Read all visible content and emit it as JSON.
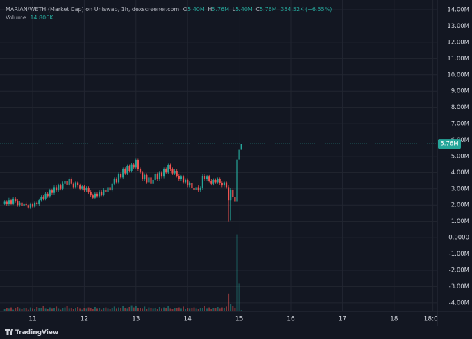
{
  "chart_data": {
    "type": "candlestick",
    "legend": {
      "symbol": "MARIAN/WETH (Market Cap) on Uniswap, 1h, dexscreener.com",
      "fields": [
        {
          "key": "O",
          "value": "5.40M"
        },
        {
          "key": "H",
          "value": "5.76M"
        },
        {
          "key": "L",
          "value": "5.40M"
        },
        {
          "key": "C",
          "value": "5.76M"
        }
      ],
      "change": "354.52K (+6.55%)",
      "volume_label": "Volume",
      "volume_value": "14.806K"
    },
    "brand": "TradingView",
    "last_price_label": "5.76M",
    "up_color": "#26a69a",
    "down_color": "#ef5350",
    "grid": true,
    "xlim": [
      -15.16,
      188.06
    ],
    "xticks": [
      {
        "value": 0,
        "label": "11"
      },
      {
        "value": 24,
        "label": "12"
      },
      {
        "value": 48,
        "label": "13"
      },
      {
        "value": 72,
        "label": "14"
      },
      {
        "value": 96,
        "label": "15"
      },
      {
        "value": 120,
        "label": "16"
      },
      {
        "value": 144,
        "label": "17"
      },
      {
        "value": 168,
        "label": "18"
      },
      {
        "value": 186,
        "label": "18:00"
      }
    ],
    "ylim": [
      -4.52,
      14.6
    ],
    "yticks": [
      {
        "value": 14,
        "label": "14.00M"
      },
      {
        "value": 13,
        "label": "13.00M"
      },
      {
        "value": 12,
        "label": "12.00M"
      },
      {
        "value": 11,
        "label": "11.00M"
      },
      {
        "value": 10,
        "label": "10.00M"
      },
      {
        "value": 9,
        "label": "9.00M"
      },
      {
        "value": 8,
        "label": "8.00M"
      },
      {
        "value": 7,
        "label": "7.00M"
      },
      {
        "value": 6,
        "label": "6.00M"
      },
      {
        "value": 5,
        "label": "5.00M"
      },
      {
        "value": 4,
        "label": "4.00M"
      },
      {
        "value": 3,
        "label": "3.00M"
      },
      {
        "value": 2,
        "label": "2.00M"
      },
      {
        "value": 1,
        "label": "1.00M"
      },
      {
        "value": 0,
        "label": "0.0000"
      },
      {
        "value": -1,
        "label": "-1.00M"
      },
      {
        "value": -2,
        "label": "-2.00M"
      },
      {
        "value": -3,
        "label": "-3.00M"
      },
      {
        "value": -4,
        "label": "-4.00M"
      }
    ],
    "volume_lim": [
      0,
      1000
    ],
    "x": [
      -13,
      -12,
      -11,
      -10,
      -9,
      -8,
      -7,
      -6,
      -5,
      -4,
      -3,
      -2,
      -1,
      0,
      1,
      2,
      3,
      4,
      5,
      6,
      7,
      8,
      9,
      10,
      11,
      12,
      13,
      14,
      15,
      16,
      17,
      18,
      19,
      20,
      21,
      22,
      23,
      24,
      25,
      26,
      27,
      28,
      29,
      30,
      31,
      32,
      33,
      34,
      35,
      36,
      37,
      38,
      39,
      40,
      41,
      42,
      43,
      44,
      45,
      46,
      47,
      48,
      49,
      50,
      51,
      52,
      53,
      54,
      55,
      56,
      57,
      58,
      59,
      60,
      61,
      62,
      63,
      64,
      65,
      66,
      67,
      68,
      69,
      70,
      71,
      72,
      73,
      74,
      75,
      76,
      77,
      78,
      79,
      80,
      81,
      82,
      83,
      84,
      85,
      86,
      87,
      88,
      89,
      90,
      91,
      92,
      93,
      94,
      95,
      96,
      97
    ],
    "open": [
      2.1,
      2.2,
      2.05,
      2.3,
      2.1,
      2.4,
      2.25,
      2.0,
      2.15,
      1.95,
      2.1,
      2.0,
      1.85,
      2.05,
      1.9,
      2.15,
      2.05,
      2.3,
      2.5,
      2.4,
      2.7,
      2.55,
      2.9,
      2.75,
      3.1,
      2.9,
      3.2,
      3.0,
      3.3,
      3.5,
      3.25,
      3.6,
      3.3,
      3.1,
      3.4,
      3.2,
      3.0,
      3.15,
      2.9,
      3.05,
      2.8,
      2.6,
      2.45,
      2.7,
      2.55,
      2.8,
      2.65,
      2.95,
      2.8,
      3.1,
      2.9,
      3.3,
      3.6,
      3.4,
      3.9,
      3.7,
      4.2,
      3.95,
      4.4,
      4.1,
      4.5,
      4.3,
      4.75,
      4.2,
      4.0,
      3.6,
      3.85,
      3.4,
      3.7,
      3.3,
      3.55,
      3.9,
      3.6,
      4.0,
      3.75,
      4.2,
      4.0,
      4.45,
      4.2,
      3.95,
      4.1,
      3.8,
      3.6,
      3.75,
      3.4,
      3.55,
      3.2,
      3.35,
      3.05,
      2.95,
      3.1,
      2.9,
      3.05,
      3.8,
      3.6,
      3.75,
      3.5,
      3.3,
      3.55,
      3.4,
      3.6,
      3.35,
      3.2,
      3.4,
      3.1,
      2.3,
      2.95,
      2.5,
      2.2,
      4.8,
      5.4
    ],
    "high": [
      2.3,
      2.3,
      2.45,
      2.4,
      2.5,
      2.5,
      2.35,
      2.25,
      2.25,
      2.2,
      2.2,
      2.1,
      2.15,
      2.15,
      2.25,
      2.25,
      2.4,
      2.6,
      2.6,
      2.8,
      2.8,
      3.0,
      3.0,
      3.2,
      3.2,
      3.3,
      3.3,
      3.45,
      3.6,
      3.6,
      3.7,
      3.7,
      3.4,
      3.5,
      3.5,
      3.3,
      3.25,
      3.25,
      3.15,
      3.15,
      2.9,
      2.7,
      2.8,
      2.8,
      2.9,
      2.9,
      3.05,
      3.05,
      3.2,
      3.2,
      3.4,
      3.7,
      3.7,
      4.0,
      4.0,
      4.3,
      4.3,
      4.5,
      4.5,
      4.6,
      4.6,
      4.85,
      4.85,
      4.3,
      4.1,
      3.95,
      3.95,
      3.8,
      3.8,
      3.65,
      4.0,
      4.0,
      4.1,
      4.1,
      4.3,
      4.3,
      4.55,
      4.55,
      4.3,
      4.2,
      4.2,
      3.9,
      3.85,
      3.85,
      3.65,
      3.65,
      3.45,
      3.45,
      3.15,
      3.2,
      3.2,
      3.15,
      3.9,
      3.9,
      3.85,
      3.85,
      3.6,
      3.65,
      3.65,
      3.7,
      3.7,
      3.45,
      3.5,
      3.5,
      3.2,
      3.05,
      3.05,
      2.6,
      9.25,
      6.55,
      5.76
    ],
    "low": [
      2.0,
      1.95,
      1.95,
      2.0,
      2.0,
      2.15,
      1.9,
      1.9,
      1.85,
      1.85,
      1.9,
      1.75,
      1.75,
      1.8,
      1.8,
      1.95,
      1.95,
      2.2,
      2.3,
      2.3,
      2.45,
      2.45,
      2.65,
      2.65,
      2.8,
      2.8,
      2.9,
      2.9,
      3.2,
      3.15,
      3.15,
      3.2,
      3.0,
      3.0,
      3.1,
      2.9,
      2.9,
      2.8,
      2.8,
      2.7,
      2.5,
      2.35,
      2.35,
      2.45,
      2.45,
      2.55,
      2.55,
      2.7,
      2.7,
      2.8,
      2.8,
      3.2,
      3.3,
      3.3,
      3.6,
      3.6,
      3.85,
      3.85,
      4.0,
      4.0,
      4.2,
      4.2,
      4.1,
      3.9,
      3.5,
      3.5,
      3.3,
      3.3,
      3.2,
      3.2,
      3.45,
      3.5,
      3.5,
      3.65,
      3.65,
      3.9,
      3.9,
      4.1,
      3.85,
      3.85,
      3.7,
      3.5,
      3.5,
      3.3,
      3.3,
      3.1,
      3.1,
      2.95,
      2.85,
      2.85,
      2.8,
      2.8,
      2.95,
      3.5,
      3.5,
      3.4,
      3.2,
      3.2,
      3.3,
      3.3,
      3.25,
      3.1,
      3.1,
      3.0,
      1.0,
      1.05,
      2.4,
      2.1,
      2.1,
      4.6,
      5.4
    ],
    "close": [
      2.2,
      2.05,
      2.3,
      2.1,
      2.4,
      2.25,
      2.0,
      2.15,
      1.95,
      2.1,
      2.0,
      1.85,
      2.05,
      1.9,
      2.15,
      2.05,
      2.3,
      2.5,
      2.4,
      2.7,
      2.55,
      2.9,
      2.75,
      3.1,
      2.9,
      3.2,
      3.0,
      3.3,
      3.5,
      3.25,
      3.6,
      3.3,
      3.1,
      3.4,
      3.2,
      3.0,
      3.15,
      2.9,
      3.05,
      2.8,
      2.6,
      2.45,
      2.7,
      2.55,
      2.8,
      2.65,
      2.95,
      2.8,
      3.1,
      2.9,
      3.3,
      3.6,
      3.4,
      3.9,
      3.7,
      4.2,
      3.95,
      4.4,
      4.1,
      4.5,
      4.3,
      4.75,
      4.2,
      4.0,
      3.6,
      3.85,
      3.4,
      3.7,
      3.3,
      3.55,
      3.9,
      3.6,
      4.0,
      3.75,
      4.2,
      4.0,
      4.45,
      4.2,
      3.95,
      4.1,
      3.8,
      3.6,
      3.75,
      3.4,
      3.55,
      3.2,
      3.35,
      3.05,
      2.95,
      3.1,
      2.9,
      3.05,
      3.8,
      3.6,
      3.75,
      3.5,
      3.3,
      3.55,
      3.4,
      3.6,
      3.35,
      3.2,
      3.4,
      3.1,
      2.3,
      2.95,
      2.5,
      2.2,
      4.8,
      5.4,
      5.76
    ],
    "volume": [
      25,
      40,
      30,
      45,
      20,
      35,
      50,
      30,
      25,
      40,
      35,
      20,
      45,
      30,
      25,
      50,
      40,
      35,
      60,
      30,
      25,
      45,
      30,
      40,
      55,
      30,
      20,
      35,
      45,
      60,
      30,
      40,
      25,
      35,
      50,
      30,
      20,
      40,
      30,
      45,
      35,
      25,
      50,
      30,
      40,
      20,
      35,
      45,
      30,
      25,
      40,
      55,
      30,
      45,
      35,
      60,
      40,
      30,
      50,
      70,
      45,
      65,
      35,
      40,
      30,
      55,
      25,
      45,
      35,
      30,
      40,
      25,
      50,
      30,
      45,
      35,
      60,
      30,
      25,
      40,
      35,
      45,
      30,
      55,
      25,
      40,
      30,
      35,
      45,
      30,
      25,
      40,
      35,
      60,
      30,
      45,
      25,
      35,
      40,
      50,
      30,
      45,
      35,
      55,
      210,
      90,
      60,
      40,
      920,
      330,
      14.806
    ]
  }
}
